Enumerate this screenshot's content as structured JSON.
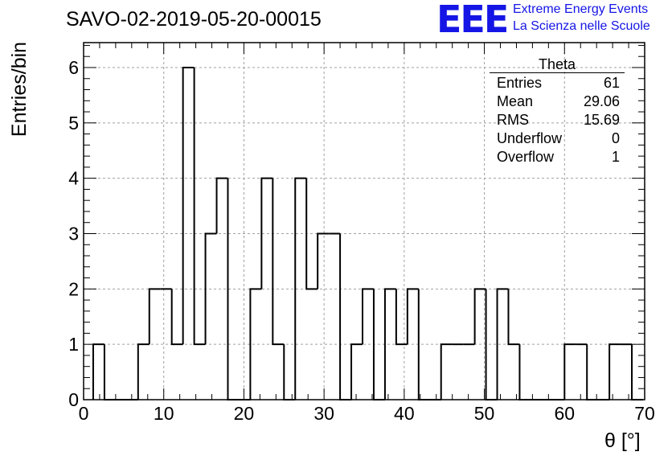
{
  "chart_data": {
    "type": "bar",
    "style": "step-histogram",
    "title": "SAVO-02-2019-05-20-00015",
    "xlabel": "θ [°]",
    "ylabel": "Entries/bin",
    "xlim": [
      0,
      70
    ],
    "ylim": [
      0,
      6.45
    ],
    "grid": true,
    "x_ticks": [
      "0",
      "10",
      "20",
      "30",
      "40",
      "50",
      "60",
      "70"
    ],
    "y_ticks": [
      "0",
      "1",
      "2",
      "3",
      "4",
      "5",
      "6"
    ],
    "bin_width": 1.4,
    "bin_start": 1.2,
    "values": [
      1,
      0,
      0,
      0,
      1,
      2,
      2,
      1,
      6,
      1,
      3,
      4,
      0,
      0,
      2,
      4,
      1,
      0,
      4,
      2,
      3,
      3,
      0,
      1,
      2,
      0,
      2,
      1,
      2,
      0,
      0,
      1,
      1,
      1,
      2,
      0,
      2,
      1,
      0,
      0,
      0,
      0,
      1,
      1,
      0,
      0,
      1,
      1,
      0
    ],
    "series_color": "#000000",
    "stats_box": {
      "title": "Theta",
      "placement": "top-right",
      "rows": [
        {
          "label": "Entries",
          "value": "61"
        },
        {
          "label": "Mean",
          "value": "29.06"
        },
        {
          "label": "RMS",
          "value": "15.69"
        },
        {
          "label": "Underflow",
          "value": "0"
        },
        {
          "label": "Overflow",
          "value": "1"
        }
      ]
    }
  },
  "logo": {
    "mark": "EEE",
    "line1": "Extreme Energy Events",
    "line2": "La Scienza nelle Scuole",
    "color": "#1515e6"
  }
}
